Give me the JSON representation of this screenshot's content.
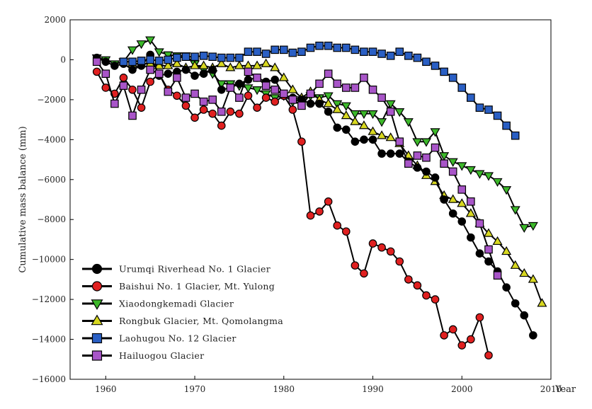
{
  "chart_data": {
    "type": "line",
    "title": "",
    "xlabel": "Year",
    "ylabel": "Cumulative mass balance (mm)",
    "xlim": [
      1956,
      2010
    ],
    "ylim": [
      -16000,
      2000
    ],
    "x_ticks": [
      1960,
      1970,
      1980,
      1990,
      2000,
      2010
    ],
    "y_ticks": [
      2000,
      0,
      -2000,
      -4000,
      -6000,
      -8000,
      -10000,
      -12000,
      -14000,
      -16000
    ],
    "x_tick_labels": [
      "1960",
      "1970",
      "1980",
      "1990",
      "2000",
      "2010"
    ],
    "y_tick_labels": [
      "2000",
      "0",
      "−2000",
      "−4000",
      "−6000",
      "−8000",
      "−10000",
      "−12000",
      "−14000",
      "−16000"
    ],
    "grid": false,
    "legend_position": "bottom-left",
    "series": [
      {
        "name": "Urumqi Riverhead No. 1 Glacier",
        "color": "#000000",
        "marker": "circle",
        "x": [
          1959,
          1960,
          1961,
          1962,
          1963,
          1964,
          1965,
          1966,
          1967,
          1968,
          1969,
          1970,
          1971,
          1972,
          1973,
          1974,
          1975,
          1976,
          1977,
          1978,
          1979,
          1980,
          1981,
          1982,
          1983,
          1984,
          1985,
          1986,
          1987,
          1988,
          1989,
          1990,
          1991,
          1992,
          1993,
          1994,
          1995,
          1996,
          1997,
          1998,
          1999,
          2000,
          2001,
          2002,
          2003,
          2004,
          2005,
          2006,
          2007,
          2008
        ],
        "y": [
          100,
          -100,
          -300,
          -200,
          -500,
          -300,
          250,
          -800,
          -700,
          -600,
          -500,
          -800,
          -700,
          -500,
          -1500,
          -1400,
          -1200,
          -1000,
          -900,
          -1100,
          -1000,
          -1800,
          -1900,
          -2000,
          -2200,
          -2200,
          -2600,
          -3400,
          -3500,
          -4100,
          -4000,
          -4000,
          -4700,
          -4700,
          -4700,
          -5100,
          -5400,
          -5600,
          -5900,
          -7000,
          -7700,
          -8100,
          -8900,
          -9700,
          -10100,
          -10600,
          -11400,
          -12200,
          -12800,
          -13800
        ]
      },
      {
        "name": "Baishui No. 1 Glacier, Mt. Yulong",
        "color": "#e02020",
        "marker": "circle",
        "x": [
          1959,
          1960,
          1961,
          1962,
          1963,
          1964,
          1965,
          1966,
          1967,
          1968,
          1969,
          1970,
          1971,
          1972,
          1973,
          1974,
          1975,
          1976,
          1977,
          1978,
          1979,
          1980,
          1981,
          1982,
          1983,
          1984,
          1985,
          1986,
          1987,
          1988,
          1989,
          1990,
          1991,
          1992,
          1993,
          1994,
          1995,
          1996,
          1997,
          1998,
          1999,
          2000,
          2001,
          2002,
          2003
        ],
        "y": [
          -600,
          -1400,
          -1700,
          -900,
          -1500,
          -2400,
          -1100,
          -700,
          -1500,
          -1800,
          -2300,
          -2900,
          -2500,
          -2700,
          -3300,
          -2600,
          -2700,
          -1800,
          -2400,
          -1900,
          -2100,
          -1800,
          -2500,
          -4100,
          -7800,
          -7600,
          -7100,
          -8300,
          -8600,
          -10300,
          -10700,
          -9200,
          -9400,
          -9600,
          -10100,
          -11000,
          -11300,
          -11800,
          -12000,
          -13800,
          -13500,
          -14300,
          -14000,
          -12900,
          -14800
        ]
      },
      {
        "name": "Xiaodongkemadi Glacier",
        "color": "#3cb82a",
        "marker": "triangle-down",
        "x": [
          1959,
          1960,
          1961,
          1962,
          1963,
          1964,
          1965,
          1966,
          1967,
          1968,
          1969,
          1970,
          1971,
          1972,
          1973,
          1974,
          1975,
          1976,
          1977,
          1978,
          1979,
          1980,
          1981,
          1982,
          1983,
          1984,
          1985,
          1986,
          1987,
          1988,
          1989,
          1990,
          1991,
          1992,
          1993,
          1994,
          1995,
          1996,
          1997,
          1998,
          1999,
          2000,
          2001,
          2002,
          2003,
          2004,
          2005,
          2006,
          2007,
          2008
        ],
        "y": [
          100,
          0,
          -200,
          -100,
          500,
          800,
          1000,
          400,
          250,
          200,
          200,
          -200,
          -500,
          -700,
          -1200,
          -1200,
          -1300,
          -1400,
          -1500,
          -1700,
          -1900,
          -1800,
          -2100,
          -2000,
          -1800,
          -1900,
          -1800,
          -2200,
          -2300,
          -2700,
          -2700,
          -2700,
          -3100,
          -2200,
          -2600,
          -3100,
          -4100,
          -4100,
          -3600,
          -4800,
          -5100,
          -5300,
          -5500,
          -5700,
          -5800,
          -6100,
          -6500,
          -7500,
          -8400,
          -8300
        ]
      },
      {
        "name": "Rongbuk Glacier, Mt. Qomolangma",
        "color": "#d8d820",
        "marker": "triangle-up",
        "x": [
          1963,
          1964,
          1965,
          1966,
          1967,
          1968,
          1969,
          1970,
          1971,
          1972,
          1973,
          1974,
          1975,
          1976,
          1977,
          1978,
          1979,
          1980,
          1981,
          1982,
          1983,
          1984,
          1985,
          1986,
          1987,
          1988,
          1989,
          1990,
          1991,
          1992,
          1993,
          1994,
          1995,
          1996,
          1997,
          1998,
          1999,
          2000,
          2001,
          2002,
          2003,
          2004,
          2005,
          2006,
          2007,
          2008,
          2009
        ],
        "y": [
          -200,
          -200,
          -200,
          -300,
          -300,
          -200,
          -400,
          -300,
          -300,
          -400,
          -200,
          -400,
          -300,
          -300,
          -300,
          -200,
          -400,
          -900,
          -1500,
          -1900,
          -1600,
          -2000,
          -2200,
          -2500,
          -2800,
          -3100,
          -3300,
          -3600,
          -3800,
          -3900,
          -4200,
          -4800,
          -5300,
          -5800,
          -6100,
          -6800,
          -7000,
          -7200,
          -7700,
          -8200,
          -8700,
          -9100,
          -9600,
          -10300,
          -10700,
          -11000,
          -12200
        ]
      },
      {
        "name": "Laohugou No. 12 Glacier",
        "color": "#2a5fc4",
        "marker": "square",
        "x": [
          1962,
          1963,
          1964,
          1965,
          1966,
          1967,
          1968,
          1969,
          1970,
          1971,
          1972,
          1973,
          1974,
          1975,
          1976,
          1977,
          1978,
          1979,
          1980,
          1981,
          1982,
          1983,
          1984,
          1985,
          1986,
          1987,
          1988,
          1989,
          1990,
          1991,
          1992,
          1993,
          1994,
          1995,
          1996,
          1997,
          1998,
          1999,
          2000,
          2001,
          2002,
          2003,
          2004,
          2005,
          2006
        ],
        "y": [
          -100,
          -100,
          -50,
          0,
          -50,
          0,
          100,
          150,
          150,
          200,
          150,
          100,
          100,
          100,
          400,
          400,
          300,
          500,
          500,
          350,
          400,
          600,
          700,
          700,
          600,
          600,
          500,
          400,
          400,
          300,
          200,
          400,
          200,
          100,
          -100,
          -300,
          -600,
          -900,
          -1400,
          -1900,
          -2400,
          -2500,
          -2800,
          -3300,
          -3800
        ]
      },
      {
        "name": "Hailuogou Glacier",
        "color": "#a855c8",
        "marker": "square",
        "x": [
          1959,
          1960,
          1961,
          1962,
          1963,
          1964,
          1965,
          1966,
          1967,
          1968,
          1969,
          1970,
          1971,
          1972,
          1973,
          1974,
          1975,
          1976,
          1977,
          1978,
          1979,
          1980,
          1981,
          1982,
          1983,
          1984,
          1985,
          1986,
          1987,
          1988,
          1989,
          1990,
          1991,
          1992,
          1993,
          1994,
          1995,
          1996,
          1997,
          1998,
          1999,
          2000,
          2001,
          2002,
          2003,
          2004
        ],
        "y": [
          -100,
          -700,
          -2200,
          -1300,
          -2800,
          -1500,
          -500,
          -700,
          -1600,
          -900,
          -1900,
          -1700,
          -2100,
          -2000,
          -2600,
          -1400,
          -1900,
          -600,
          -900,
          -1300,
          -1500,
          -1700,
          -2000,
          -2300,
          -1700,
          -1200,
          -700,
          -1200,
          -1400,
          -1400,
          -900,
          -1500,
          -1900,
          -2600,
          -4100,
          -5200,
          -4800,
          -4900,
          -4400,
          -5200,
          -5600,
          -6500,
          -7100,
          -8200,
          -9500,
          -10800
        ]
      }
    ]
  }
}
